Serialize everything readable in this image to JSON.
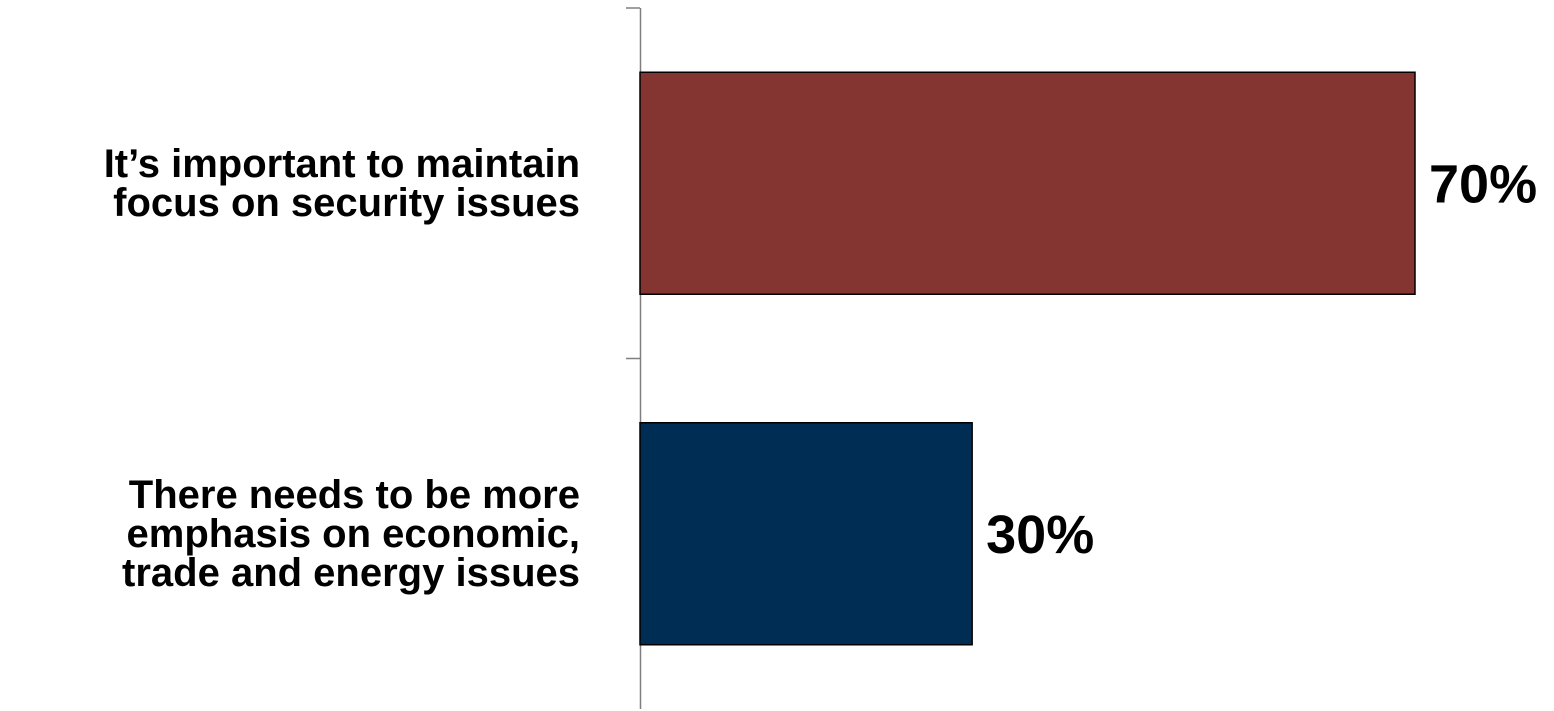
{
  "chart_data": {
    "type": "bar",
    "orientation": "horizontal",
    "categories": [
      [
        "It’s important to maintain",
        "focus on security issues"
      ],
      [
        "There needs to be more",
        "emphasis on economic,",
        "trade and energy issues"
      ]
    ],
    "values": [
      70,
      30
    ],
    "value_labels": [
      "70%",
      "30%"
    ],
    "colors": [
      "#843431",
      "#002D53"
    ],
    "xlim": [
      0,
      70
    ],
    "grid": false,
    "legend": "none",
    "title": "",
    "xlabel": "",
    "ylabel": ""
  }
}
